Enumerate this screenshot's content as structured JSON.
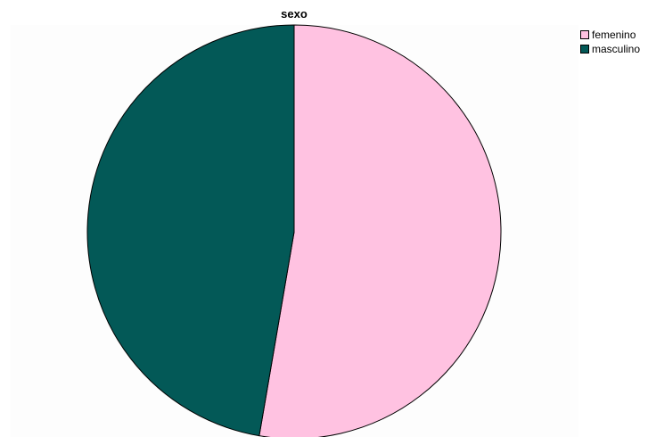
{
  "chart_data": {
    "type": "pie",
    "title": "sexo",
    "legend_position": "top-right",
    "categories": [
      "femenino",
      "masculino"
    ],
    "values": [
      52.7,
      47.3
    ],
    "colors": [
      "#ffc2e1",
      "#035957"
    ]
  }
}
